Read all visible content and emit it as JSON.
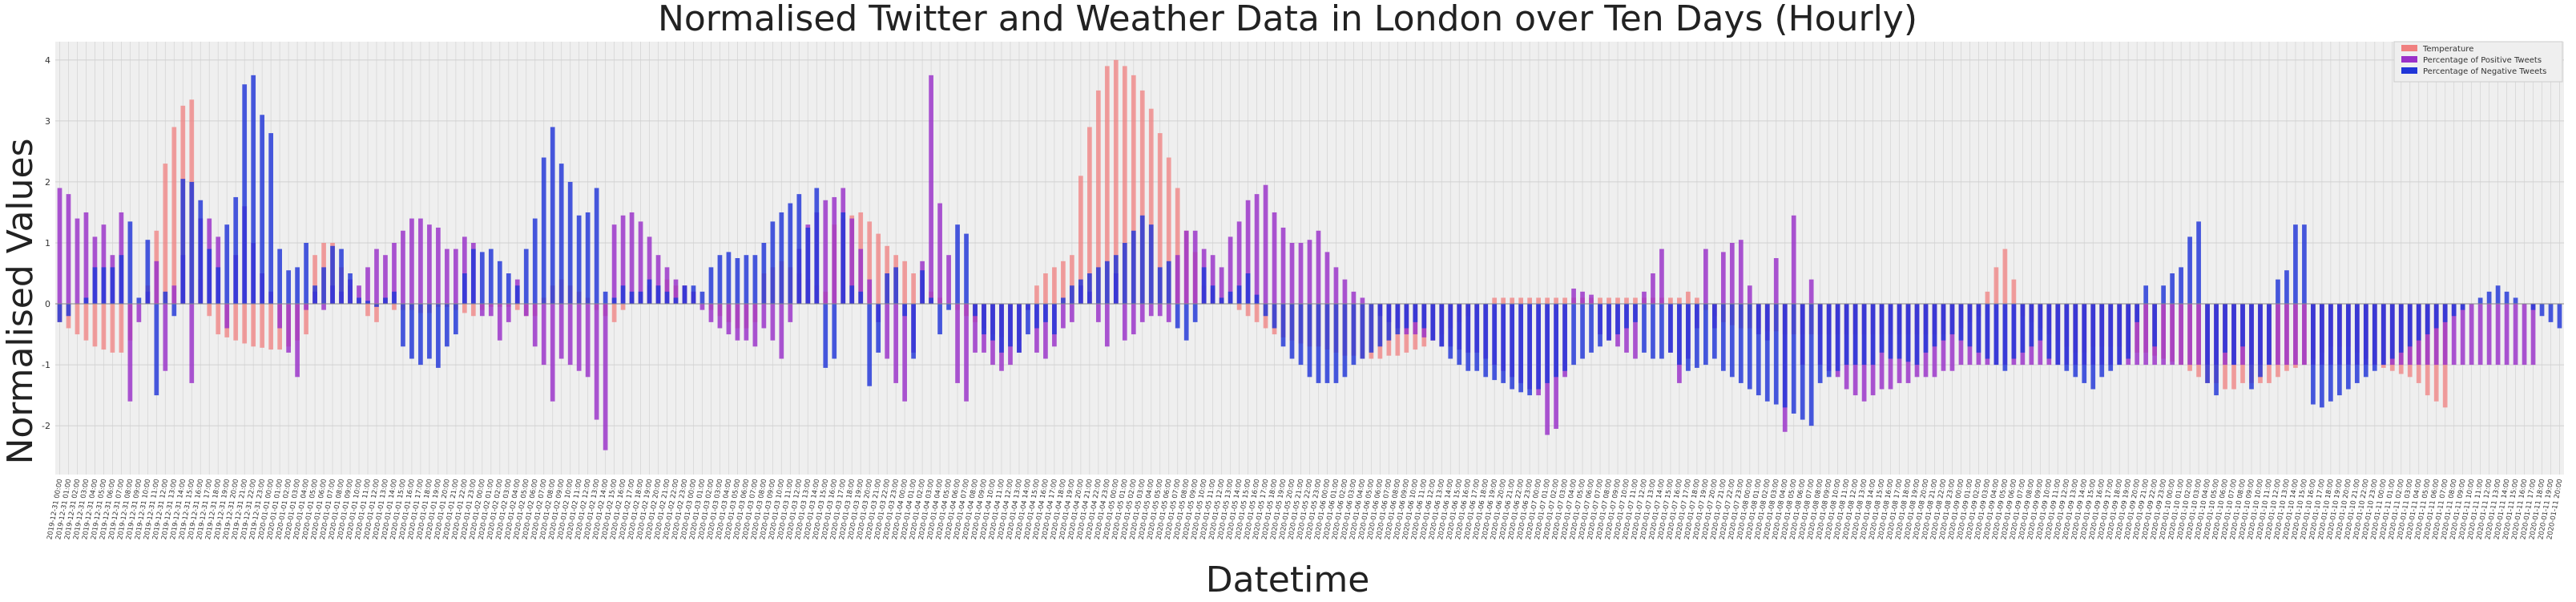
{
  "chart_data": {
    "type": "bar",
    "title": "Normalised Twitter and Weather Data in London over Ten Days (Hourly)",
    "xlabel": "Datetime",
    "ylabel": "Normalised Values",
    "ylim": [
      -2.8,
      4.3
    ],
    "yticks": [
      -2,
      -1,
      0,
      1,
      2,
      3,
      4
    ],
    "grid": true,
    "legend_position": "top-right",
    "x_start": "2019-12-31 00:00",
    "x_step_hours": 1,
    "series": [
      {
        "name": "Temperature",
        "color": "#f08080",
        "values": [
          -0.3,
          -0.4,
          -0.5,
          -0.6,
          -0.7,
          -0.75,
          -0.8,
          -0.8,
          -0.6,
          0.0,
          0.3,
          1.2,
          2.3,
          2.9,
          3.25,
          3.35,
          0.4,
          -0.2,
          -0.5,
          -0.55,
          -0.6,
          -0.65,
          -0.7,
          -0.72,
          -0.75,
          -0.75,
          -0.7,
          -0.6,
          -0.5,
          0.8,
          1.0,
          1.0,
          0.6,
          0.3,
          0.0,
          -0.2,
          -0.3,
          0.1,
          -0.1,
          -0.1,
          -0.1,
          -0.15,
          -0.15,
          -0.05,
          -0.05,
          -0.1,
          -0.15,
          -0.2,
          -0.1,
          -0.05,
          -0.05,
          -0.05,
          -0.1,
          -0.2,
          -0.2,
          0.1,
          0.3,
          0.4,
          0.3,
          0.2,
          0.1,
          -0.1,
          -0.2,
          -0.3,
          -0.1,
          0.1,
          0.2,
          0.3,
          0.3,
          0.4,
          0.3,
          0.3,
          0.2,
          0.0,
          -0.1,
          -0.2,
          -0.3,
          -0.4,
          -0.4,
          -0.3,
          0.5,
          0.6,
          0.7,
          0.6,
          0.5,
          0.4,
          0.3,
          0.2,
          1.3,
          1.4,
          1.45,
          1.5,
          1.35,
          1.15,
          0.95,
          0.8,
          0.7,
          0.5,
          0.4,
          0.2,
          0.1,
          0.0,
          -0.1,
          -0.2,
          -0.3,
          -0.4,
          -0.5,
          -0.55,
          -0.6,
          -0.6,
          0.0,
          0.3,
          0.5,
          0.6,
          0.7,
          0.8,
          2.1,
          2.9,
          3.5,
          3.9,
          4.0,
          3.9,
          3.75,
          3.5,
          3.2,
          2.8,
          2.4,
          1.9,
          1.2,
          0.85,
          0.3,
          0.25,
          0.1,
          0.0,
          -0.1,
          -0.2,
          -0.3,
          -0.4,
          -0.5,
          -0.55,
          -0.6,
          -0.65,
          -0.7,
          -0.7,
          -0.75,
          -0.8,
          -0.85,
          -0.85,
          -0.9,
          -0.9,
          -0.9,
          -0.85,
          -0.85,
          -0.8,
          -0.75,
          -0.7,
          -0.6,
          -0.5,
          -0.4,
          -0.3,
          -0.2,
          -0.1,
          0.0,
          0.1,
          0.1,
          0.1,
          0.1,
          0.1,
          0.1,
          0.1,
          0.1,
          0.1,
          0.1,
          0.1,
          0.1,
          0.1,
          0.1,
          0.1,
          0.1,
          0.1,
          0.1,
          0.1,
          0.1,
          0.1,
          0.1,
          0.2,
          0.1,
          -0.1,
          -0.2,
          -0.3,
          -0.35,
          -0.4,
          -0.4,
          -0.4,
          -0.45,
          -0.45,
          -0.5,
          -0.5,
          -0.5,
          -0.5,
          -0.5,
          -0.5,
          -0.5,
          -0.5,
          -0.5,
          -0.5,
          -0.5,
          -0.5,
          -0.5,
          -0.5,
          -0.5,
          -0.5,
          -0.5,
          -0.5,
          -0.5,
          -0.5,
          -0.4,
          -0.3,
          -0.2,
          0.2,
          0.6,
          0.9,
          0.4,
          -0.2,
          -0.3,
          -0.4,
          -0.5,
          -0.6,
          -0.7,
          -0.8,
          -0.8,
          -0.7,
          -0.7,
          -0.7,
          -0.7,
          -0.8,
          -0.8,
          -0.8,
          -0.85,
          -0.9,
          -0.95,
          -1.0,
          -1.1,
          -1.2,
          -1.3,
          -1.3,
          -1.4,
          -1.4,
          -1.3,
          -1.3,
          -1.3,
          -1.3,
          -1.2,
          -1.1,
          -1.05,
          -1.0,
          -0.9,
          -0.8,
          -0.7,
          -0.7,
          -0.7,
          -0.8,
          -0.9,
          -1.0,
          -1.05,
          -1.1,
          -1.15,
          -1.2,
          -1.3,
          -1.5,
          -1.6,
          -1.7
        ]
      },
      {
        "name": "Percentage of Positive Tweets",
        "color": "#9a31c9",
        "values": [
          1.9,
          1.8,
          1.4,
          1.5,
          1.1,
          1.3,
          0.8,
          1.5,
          -1.6,
          -0.3,
          0.2,
          0.7,
          -1.1,
          0.3,
          0.8,
          -1.3,
          1.4,
          1.4,
          1.1,
          -0.4,
          0.8,
          1.6,
          1.0,
          0.5,
          0.2,
          -0.4,
          -0.8,
          -1.2,
          -0.1,
          0.2,
          -0.1,
          0.3,
          0.2,
          0.4,
          0.3,
          0.6,
          0.9,
          0.8,
          1.0,
          1.2,
          1.4,
          1.4,
          1.3,
          1.25,
          0.9,
          0.9,
          1.1,
          1.0,
          -0.2,
          -0.2,
          -0.6,
          -0.3,
          0.4,
          -0.2,
          -0.7,
          -1.0,
          -1.6,
          -0.9,
          -1.0,
          -1.1,
          -1.2,
          -1.9,
          -2.4,
          1.3,
          1.45,
          1.5,
          1.35,
          1.1,
          0.8,
          0.6,
          0.4,
          0.3,
          0.2,
          -0.1,
          -0.3,
          -0.4,
          -0.5,
          -0.6,
          -0.6,
          -0.7,
          -0.4,
          -0.6,
          -0.9,
          -0.3,
          0.9,
          1.3,
          1.5,
          1.7,
          1.75,
          1.9,
          1.4,
          0.9,
          0.4,
          -0.3,
          -0.9,
          -1.3,
          -1.6,
          -0.8,
          0.7,
          3.75,
          1.65,
          0.8,
          -1.3,
          -1.6,
          -0.8,
          -0.8,
          -1.0,
          -1.1,
          -1.0,
          -0.8,
          -0.1,
          -0.8,
          -0.9,
          -0.7,
          -0.4,
          -0.3,
          0.3,
          0.2,
          -0.3,
          -0.7,
          0.5,
          -0.6,
          -0.5,
          -0.3,
          -0.2,
          -0.2,
          -0.3,
          0.8,
          1.2,
          1.2,
          0.9,
          0.8,
          0.6,
          1.1,
          1.35,
          1.7,
          1.8,
          1.95,
          1.5,
          1.25,
          1.0,
          1.0,
          1.05,
          1.2,
          0.85,
          0.6,
          0.4,
          0.2,
          0.1,
          0.0,
          -0.2,
          -0.3,
          -0.4,
          -0.5,
          -0.5,
          -0.55,
          -0.6,
          -0.7,
          -0.7,
          -0.75,
          -0.8,
          -0.8,
          -0.9,
          -1.0,
          -1.1,
          -1.2,
          -1.3,
          -1.4,
          -1.5,
          -2.15,
          -2.05,
          -1.2,
          0.25,
          0.2,
          0.15,
          -0.5,
          -0.6,
          -0.7,
          -0.8,
          -0.9,
          0.2,
          0.5,
          0.9,
          -0.8,
          -1.3,
          -0.9,
          -0.4,
          0.9,
          -0.4,
          0.85,
          1.0,
          1.05,
          0.3,
          -0.5,
          -0.6,
          0.75,
          -2.1,
          1.45,
          -1.0,
          0.4,
          -1.0,
          -1.1,
          -1.2,
          -1.4,
          -1.5,
          -1.6,
          -1.5,
          -1.4,
          -1.4,
          -1.3,
          -1.3,
          -1.2,
          -1.2,
          -1.2,
          -1.1,
          -1.1,
          -1.0,
          -1.0,
          -1.0,
          -1.0,
          -1.0,
          -1.0,
          -1.0,
          -1.0,
          -1.0,
          -1.0,
          -1.0,
          -1.0,
          -1.0,
          -1.0,
          -1.0,
          -1.0,
          -1.0,
          -1.0,
          -1.0,
          -1.0,
          -1.0,
          -1.0,
          -1.0,
          -1.0,
          -1.0,
          -1.0,
          -1.0,
          -1.0,
          -1.0,
          -1.0,
          -1.0,
          -1.0,
          -1.0,
          -1.0,
          -1.0,
          -1.0,
          -1.0,
          -1.0,
          -1.0,
          -1.0,
          -1.0,
          -1.0,
          -1.0,
          -1.0,
          -1.0,
          -1.0,
          -1.0,
          -1.0,
          -1.0,
          -1.0,
          -1.0,
          -1.0,
          -1.0,
          -1.0,
          -1.0,
          -1.0,
          -1.0,
          -1.0,
          -1.0,
          -1.0,
          -1.0,
          -1.0,
          -1.0,
          -1.0,
          -1.0,
          -1.0
        ]
      },
      {
        "name": "Percentage of Negative Tweets",
        "color": "#2136d8",
        "values": [
          -0.3,
          -0.2,
          0.0,
          0.1,
          0.6,
          0.6,
          0.6,
          0.8,
          1.35,
          0.1,
          1.05,
          -1.5,
          0.2,
          -0.2,
          2.05,
          2.0,
          1.7,
          0.9,
          0.6,
          1.3,
          1.75,
          3.6,
          3.75,
          3.1,
          2.8,
          0.9,
          0.55,
          0.6,
          1.0,
          0.3,
          0.6,
          0.95,
          0.9,
          0.5,
          0.1,
          0.05,
          -0.05,
          0.1,
          0.2,
          -0.7,
          -0.9,
          -1.0,
          -0.9,
          -1.05,
          -0.7,
          -0.5,
          0.5,
          0.9,
          0.85,
          0.9,
          0.7,
          0.5,
          0.3,
          0.9,
          1.4,
          2.4,
          2.9,
          2.3,
          2.0,
          1.45,
          1.5,
          1.9,
          0.2,
          0.1,
          0.3,
          0.2,
          0.2,
          0.4,
          0.3,
          0.2,
          0.1,
          0.3,
          0.3,
          0.2,
          0.6,
          0.8,
          0.85,
          0.75,
          0.8,
          0.8,
          1.0,
          1.35,
          1.5,
          1.65,
          1.8,
          1.25,
          1.9,
          -1.05,
          -0.9,
          1.5,
          0.3,
          0.2,
          -1.35,
          -0.8,
          0.5,
          0.6,
          -0.2,
          -0.9,
          0.55,
          0.1,
          -0.5,
          -0.1,
          1.3,
          1.15,
          -0.2,
          -0.5,
          -0.6,
          -0.8,
          -0.7,
          -0.8,
          -0.5,
          -0.4,
          -0.3,
          -0.5,
          0.1,
          0.3,
          0.4,
          0.5,
          0.6,
          0.7,
          0.8,
          1.0,
          1.2,
          1.45,
          1.3,
          0.6,
          0.7,
          -0.4,
          -0.6,
          -0.3,
          0.6,
          0.3,
          0.1,
          0.2,
          0.3,
          0.5,
          0.15,
          -0.2,
          -0.4,
          -0.7,
          -0.9,
          -1.0,
          -1.2,
          -1.3,
          -1.3,
          -1.3,
          -1.2,
          -1.0,
          -0.9,
          -0.8,
          -0.7,
          -0.6,
          -0.5,
          -0.4,
          -0.3,
          -0.4,
          -0.6,
          -0.7,
          -0.9,
          -1.0,
          -1.1,
          -1.1,
          -1.2,
          -1.25,
          -1.3,
          -1.4,
          -1.45,
          -1.5,
          -1.4,
          -1.3,
          -1.2,
          -1.1,
          -1.0,
          -0.9,
          -0.8,
          -0.7,
          -0.6,
          -0.5,
          -0.4,
          -0.3,
          -0.8,
          -0.9,
          -0.9,
          -0.8,
          -1.0,
          -1.1,
          -1.05,
          -1.0,
          -0.9,
          -1.1,
          -1.2,
          -1.3,
          -1.4,
          -1.5,
          -1.6,
          -1.65,
          -1.7,
          -1.8,
          -1.9,
          -2.0,
          -1.3,
          -1.2,
          -1.1,
          -1.0,
          -1.0,
          -1.0,
          -1.0,
          -0.8,
          -0.9,
          -0.9,
          -0.95,
          -1.0,
          -0.8,
          -0.7,
          -0.6,
          -0.5,
          -0.6,
          -0.7,
          -0.8,
          -0.9,
          -1.0,
          -1.1,
          -0.9,
          -0.8,
          -0.7,
          -0.6,
          -0.9,
          -1.0,
          -1.1,
          -1.2,
          -1.3,
          -1.4,
          -1.2,
          -1.1,
          -1.0,
          -0.9,
          -0.3,
          0.3,
          -0.7,
          0.3,
          0.5,
          0.6,
          1.1,
          1.35,
          -1.3,
          -1.5,
          -0.8,
          -1.0,
          -0.7,
          -1.4,
          -1.2,
          -1.0,
          0.4,
          0.55,
          1.3,
          1.3,
          -1.65,
          -1.7,
          -1.6,
          -1.5,
          -1.4,
          -1.3,
          -1.2,
          -1.1,
          -1.0,
          -0.9,
          -0.8,
          -0.7,
          -0.6,
          -0.5,
          -0.4,
          -0.3,
          -0.2,
          -0.1,
          0.0,
          0.1,
          0.2,
          0.3,
          0.2,
          0.1,
          0.0,
          -0.1,
          -0.2,
          -0.3,
          -0.4
        ]
      }
    ]
  }
}
